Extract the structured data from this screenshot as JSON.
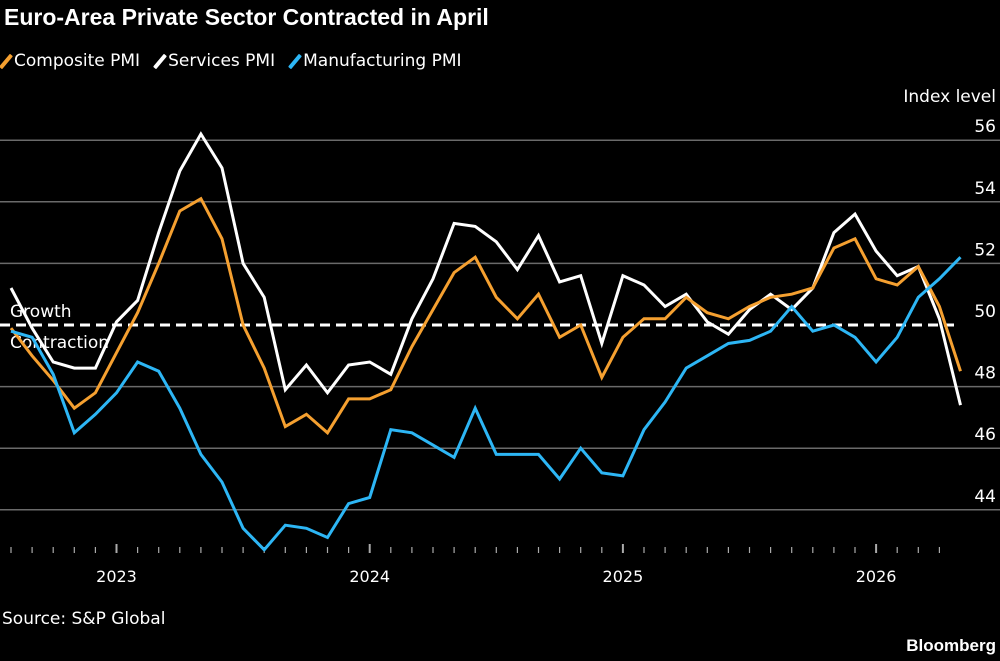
{
  "title": "Euro-Area Private Sector Contracted in April",
  "source": "Source: S&P Global",
  "brand": "Bloomberg",
  "chart_data": {
    "type": "line",
    "title": "Euro-Area Private Sector Contracted in April",
    "ylabel": "Index level",
    "ylim": [
      42.5,
      56.5
    ],
    "yticks": [
      44,
      46,
      48,
      50,
      52,
      54,
      56
    ],
    "xticks": [
      "2023",
      "2024",
      "2025",
      "2026"
    ],
    "grid": true,
    "legend_position": "top-left",
    "reference_line": {
      "value": 50,
      "above_label": "Growth",
      "below_label": "Contraction"
    },
    "x": [
      "2022-07",
      "2022-08",
      "2022-09",
      "2022-10",
      "2022-11",
      "2022-12",
      "2023-01",
      "2023-02",
      "2023-03",
      "2023-04",
      "2023-05",
      "2023-06",
      "2023-07",
      "2023-08",
      "2023-09",
      "2023-10",
      "2023-11",
      "2023-12",
      "2024-01",
      "2024-02",
      "2024-03",
      "2024-04",
      "2024-05",
      "2024-06",
      "2024-07",
      "2024-08",
      "2024-09",
      "2024-10",
      "2024-11",
      "2024-12",
      "2025-01",
      "2025-02",
      "2025-03",
      "2025-04",
      "2025-05",
      "2025-06",
      "2025-07",
      "2025-08",
      "2025-09",
      "2025-10",
      "2025-11",
      "2025-12",
      "2026-01",
      "2026-02",
      "2026-03",
      "2026-04"
    ],
    "series": [
      {
        "name": "Composite PMI",
        "color": "#f5a030",
        "values": [
          49.9,
          49.0,
          48.2,
          47.3,
          47.8,
          49.1,
          50.4,
          52.0,
          53.7,
          54.1,
          52.8,
          50.0,
          48.6,
          46.7,
          47.1,
          46.5,
          47.6,
          47.6,
          47.9,
          49.3,
          50.5,
          51.7,
          52.2,
          50.9,
          50.2,
          51.0,
          49.6,
          50.0,
          48.3,
          49.6,
          50.2,
          50.2,
          50.9,
          50.4,
          50.2,
          50.6,
          50.9,
          51.0,
          51.2,
          52.5,
          52.8,
          51.5,
          51.3,
          51.9,
          50.6,
          48.5
        ]
      },
      {
        "name": "Services PMI",
        "color": "#ffffff",
        "values": [
          51.2,
          49.9,
          48.8,
          48.6,
          48.6,
          50.1,
          50.8,
          53.0,
          55.0,
          56.2,
          55.1,
          52.0,
          50.9,
          47.9,
          48.7,
          47.8,
          48.7,
          48.8,
          48.4,
          50.2,
          51.5,
          53.3,
          53.2,
          52.7,
          51.8,
          52.9,
          51.4,
          51.6,
          49.4,
          51.6,
          51.3,
          50.6,
          51.0,
          50.1,
          49.7,
          50.5,
          51.0,
          50.5,
          51.2,
          53.0,
          53.6,
          52.4,
          51.6,
          51.9,
          50.2,
          47.4
        ]
      },
      {
        "name": "Manufacturing PMI",
        "color": "#2db6f5",
        "values": [
          49.8,
          49.6,
          48.4,
          46.5,
          47.1,
          47.8,
          48.8,
          48.5,
          47.3,
          45.8,
          44.9,
          43.4,
          42.7,
          43.5,
          43.4,
          43.1,
          44.2,
          44.4,
          46.6,
          46.5,
          46.1,
          45.7,
          47.3,
          45.8,
          45.8,
          45.8,
          45.0,
          46.0,
          45.2,
          45.1,
          46.6,
          47.5,
          48.6,
          49.0,
          49.4,
          49.5,
          49.8,
          50.6,
          49.8,
          50.0,
          49.6,
          48.8,
          49.6,
          50.9,
          51.5,
          52.2
        ]
      }
    ]
  }
}
